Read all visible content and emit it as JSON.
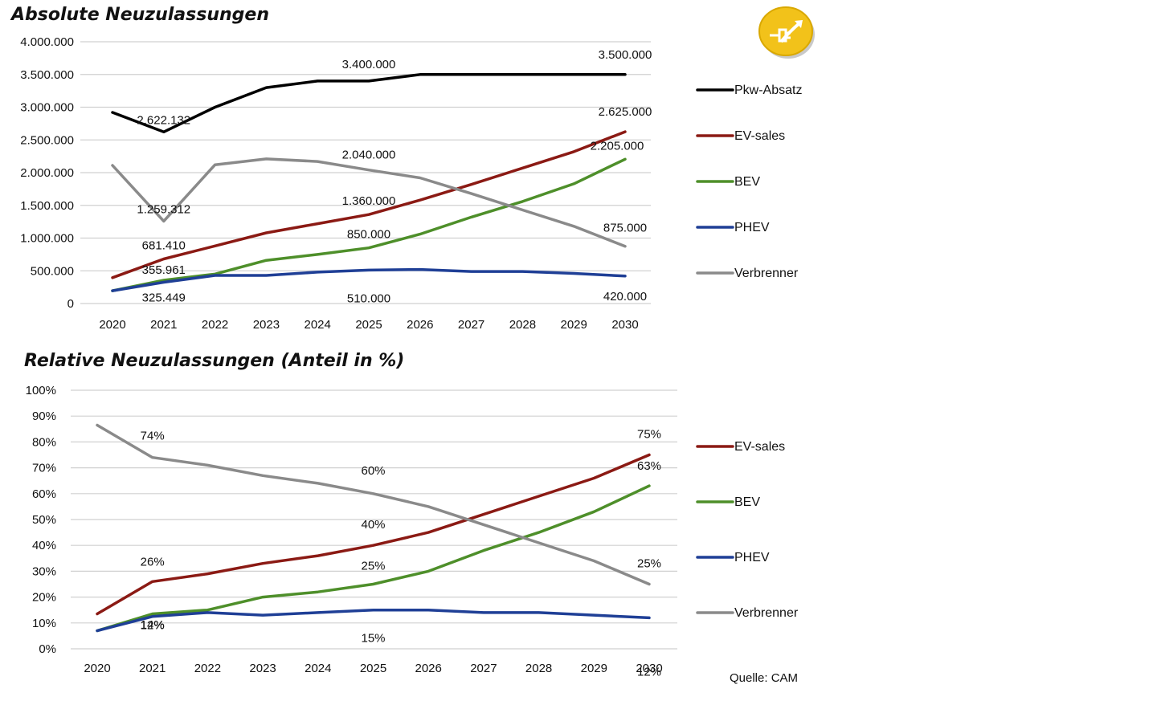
{
  "source_label": "Quelle: CAM",
  "colors": {
    "Pkw-Absatz": "#000000",
    "EV-sales": "#8b1a14",
    "BEV": "#4e8f2a",
    "PHEV": "#1f3f96",
    "Verbrenner": "#8a8a8a",
    "grid": "#d0d0d0",
    "logo": "#f2c21a"
  },
  "logo_icon": "plug-arrow-icon",
  "chart_data": [
    {
      "type": "line",
      "title": "Absolute Neuzulassungen",
      "x": [
        "2020",
        "2021",
        "2022",
        "2023",
        "2024",
        "2025",
        "2026",
        "2027",
        "2028",
        "2029",
        "2030"
      ],
      "ylim": [
        0,
        4000000
      ],
      "yticks": [
        0,
        500000,
        1000000,
        1500000,
        2000000,
        2500000,
        3000000,
        3500000,
        4000000
      ],
      "ytick_labels": [
        "0",
        "500.000",
        "1.000.000",
        "1.500.000",
        "2.000.000",
        "2.500.000",
        "3.000.000",
        "3.500.000",
        "4.000.000"
      ],
      "series": [
        {
          "name": "Pkw-Absatz",
          "values": [
            2920000,
            2622132,
            3000000,
            3300000,
            3400000,
            3400000,
            3500000,
            3500000,
            3500000,
            3500000,
            3500000
          ]
        },
        {
          "name": "EV-sales",
          "values": [
            395000,
            681410,
            880000,
            1080000,
            1220000,
            1360000,
            1580000,
            1820000,
            2070000,
            2320000,
            2625000
          ]
        },
        {
          "name": "BEV",
          "values": [
            195000,
            355961,
            450000,
            660000,
            750000,
            850000,
            1060000,
            1320000,
            1560000,
            1830000,
            2205000
          ]
        },
        {
          "name": "PHEV",
          "values": [
            195000,
            325449,
            430000,
            430000,
            480000,
            510000,
            520000,
            490000,
            490000,
            460000,
            420000
          ]
        },
        {
          "name": "Verbrenner",
          "values": [
            2110000,
            1259312,
            2120000,
            2210000,
            2170000,
            2040000,
            1920000,
            1680000,
            1430000,
            1180000,
            875000
          ]
        }
      ],
      "annotations": [
        {
          "text": "2.622.132",
          "x": "2021",
          "y": 2622132
        },
        {
          "text": "1.259.312",
          "x": "2021",
          "y": 1259312
        },
        {
          "text": "681.410",
          "x": "2021",
          "y": 681410
        },
        {
          "text": "355.961",
          "x": "2021",
          "y": 355961
        },
        {
          "text": "325.449",
          "x": "2021",
          "y": 325449
        },
        {
          "text": "3.400.000",
          "x": "2025",
          "y": 3400000
        },
        {
          "text": "2.040.000",
          "x": "2025",
          "y": 2040000
        },
        {
          "text": "1.360.000",
          "x": "2025",
          "y": 1360000
        },
        {
          "text": "850.000",
          "x": "2025",
          "y": 850000
        },
        {
          "text": "510.000",
          "x": "2025",
          "y": 510000
        },
        {
          "text": "3.500.000",
          "x": "2030",
          "y": 3500000
        },
        {
          "text": "2.625.000",
          "x": "2030",
          "y": 2625000
        },
        {
          "text": "2.205.000",
          "x": "2030",
          "y": 2205000
        },
        {
          "text": "875.000",
          "x": "2030",
          "y": 875000
        },
        {
          "text": "420.000",
          "x": "2030",
          "y": 420000
        }
      ],
      "legend": [
        "Pkw-Absatz",
        "EV-sales",
        "BEV",
        "PHEV",
        "Verbrenner"
      ],
      "legend_position": "right",
      "grid": true
    },
    {
      "type": "line",
      "title": "Relative Neuzulassungen (Anteil in %)",
      "x": [
        "2020",
        "2021",
        "2022",
        "2023",
        "2024",
        "2025",
        "2026",
        "2027",
        "2028",
        "2029",
        "2030"
      ],
      "ylim": [
        0,
        100
      ],
      "yticks": [
        0,
        10,
        20,
        30,
        40,
        50,
        60,
        70,
        80,
        90,
        100
      ],
      "ytick_labels": [
        "0%",
        "10%",
        "20%",
        "30%",
        "40%",
        "50%",
        "60%",
        "70%",
        "80%",
        "90%",
        "100%"
      ],
      "series": [
        {
          "name": "EV-sales",
          "values": [
            13.5,
            26,
            29,
            33,
            36,
            40,
            45,
            52,
            59,
            66,
            75
          ]
        },
        {
          "name": "BEV",
          "values": [
            7,
            13.5,
            15,
            20,
            22,
            25,
            30,
            38,
            45,
            53,
            63
          ]
        },
        {
          "name": "PHEV",
          "values": [
            7,
            12.5,
            14,
            13,
            14,
            15,
            15,
            14,
            14,
            13,
            12
          ]
        },
        {
          "name": "Verbrenner",
          "values": [
            86.5,
            74,
            71,
            67,
            64,
            60,
            55,
            48,
            41,
            34,
            25
          ]
        }
      ],
      "annotations": [
        {
          "text": "74%",
          "x": "2021",
          "y": 74
        },
        {
          "text": "26%",
          "x": "2021",
          "y": 26
        },
        {
          "text": "14%",
          "x": "2021",
          "y": 14
        },
        {
          "text": "12%",
          "x": "2021",
          "y": 12
        },
        {
          "text": "60%",
          "x": "2025",
          "y": 60
        },
        {
          "text": "40%",
          "x": "2025",
          "y": 40
        },
        {
          "text": "25%",
          "x": "2025",
          "y": 25
        },
        {
          "text": "15%",
          "x": "2025",
          "y": 15
        },
        {
          "text": "75%",
          "x": "2030",
          "y": 75
        },
        {
          "text": "63%",
          "x": "2030",
          "y": 63
        },
        {
          "text": "25%",
          "x": "2030",
          "y": 25
        },
        {
          "text": "12%",
          "x": "2030",
          "y": 12
        }
      ],
      "legend": [
        "EV-sales",
        "BEV",
        "PHEV",
        "Verbrenner"
      ],
      "legend_position": "right",
      "grid": true
    }
  ]
}
